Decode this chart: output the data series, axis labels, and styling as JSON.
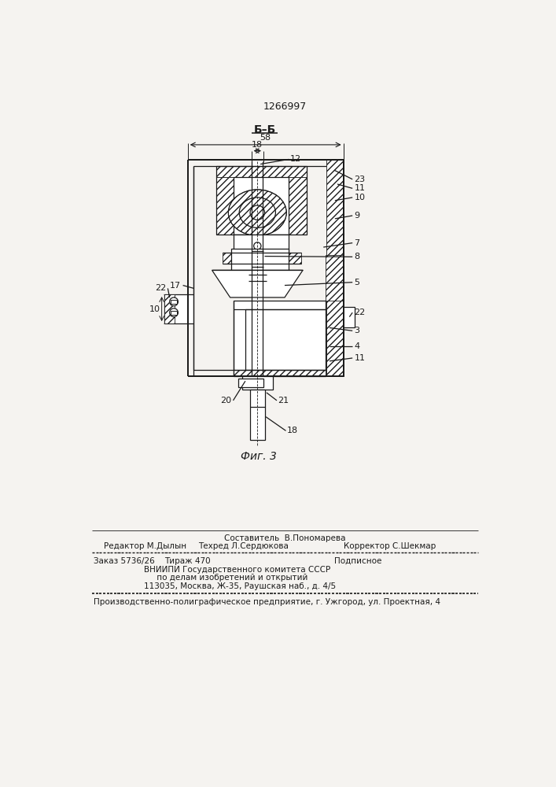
{
  "patent_number": "1266997",
  "section_label": "Б–Б",
  "fig_label": "Фиг. 3",
  "dim_58": "58",
  "dim_18": "18",
  "dim_10": "10",
  "bg_color": "#f5f3f0",
  "footer_line1": "Составитель  В.Пономарева",
  "footer_line2_left": "Редактор М.Дылын",
  "footer_line2_mid": "Техред Л.Сердюкова",
  "footer_line2_right": "Корректор С.Шекмар",
  "footer_zakas": "Заказ 5736/26",
  "footer_tiraz": "Тираж 470",
  "footer_podp": "Подписное",
  "footer_vniip1": "ВНИИПИ Государственного комитета СССР",
  "footer_vniip2": "     по делам изобретений и открытий",
  "footer_vniip3": "113035, Москва, Ж-35, Раушская наб., д. 4/5",
  "footer_prod": "Производственно-полиграфическое предприятие, г. Ужгород, ул. Проектная, 4"
}
